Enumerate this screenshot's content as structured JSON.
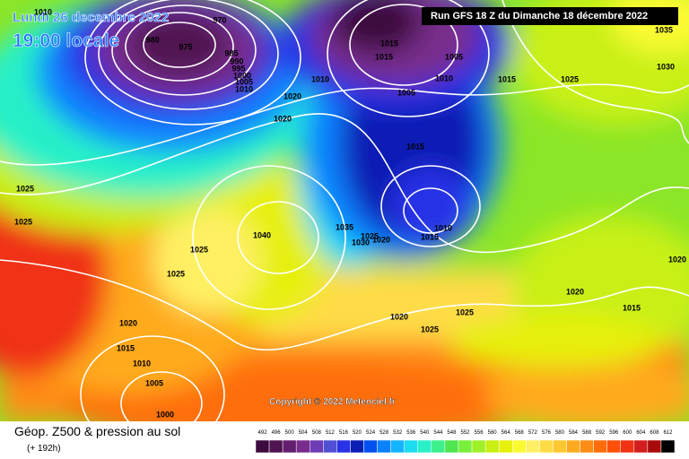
{
  "header": {
    "date": "Lundi 26 decembre 2022",
    "time": "19:00 locale",
    "run": "Run GFS 18 Z du Dimanche 18 décembre 2022"
  },
  "copyright": "Copyright © 2022 Meteociel.fr",
  "footer": {
    "title": "Géop. Z500 & pression au sol",
    "lead": "(+ 192h)"
  },
  "scale": {
    "values": [
      492,
      496,
      500,
      504,
      508,
      512,
      516,
      520,
      524,
      528,
      532,
      536,
      540,
      544,
      548,
      552,
      556,
      560,
      564,
      568,
      572,
      576,
      580,
      584,
      588,
      592,
      596,
      600,
      604,
      608,
      612
    ],
    "colors": [
      "#3c0a3c",
      "#501450",
      "#641e6e",
      "#782d8c",
      "#6e3cb4",
      "#5050d2",
      "#2832e6",
      "#0a1eb4",
      "#0050f0",
      "#0a82ff",
      "#14b4ff",
      "#1edcf0",
      "#28f0c8",
      "#3cf08c",
      "#50e650",
      "#78f03c",
      "#a0f028",
      "#c8f014",
      "#e6f00a",
      "#fafa32",
      "#fff064",
      "#ffdc46",
      "#ffc832",
      "#ffaa1e",
      "#ff8c14",
      "#ff6e0a",
      "#ff500a",
      "#f03214",
      "#d21e1e",
      "#aa0a0a",
      "#000000"
    ]
  },
  "isobar_labels": [
    1010,
    970,
    980,
    975,
    985,
    990,
    995,
    1000,
    1005,
    1010,
    1010,
    1020,
    1020,
    1015,
    1015,
    1005,
    1005,
    1010,
    1015,
    1025,
    1030,
    1035,
    1015,
    1025,
    1025,
    1040,
    1035,
    1030,
    1025,
    1020,
    1015,
    1010,
    1025,
    1025,
    1020,
    1020,
    1015,
    1020,
    1025,
    1025,
    1020,
    1015,
    1010,
    1005,
    1000
  ]
}
